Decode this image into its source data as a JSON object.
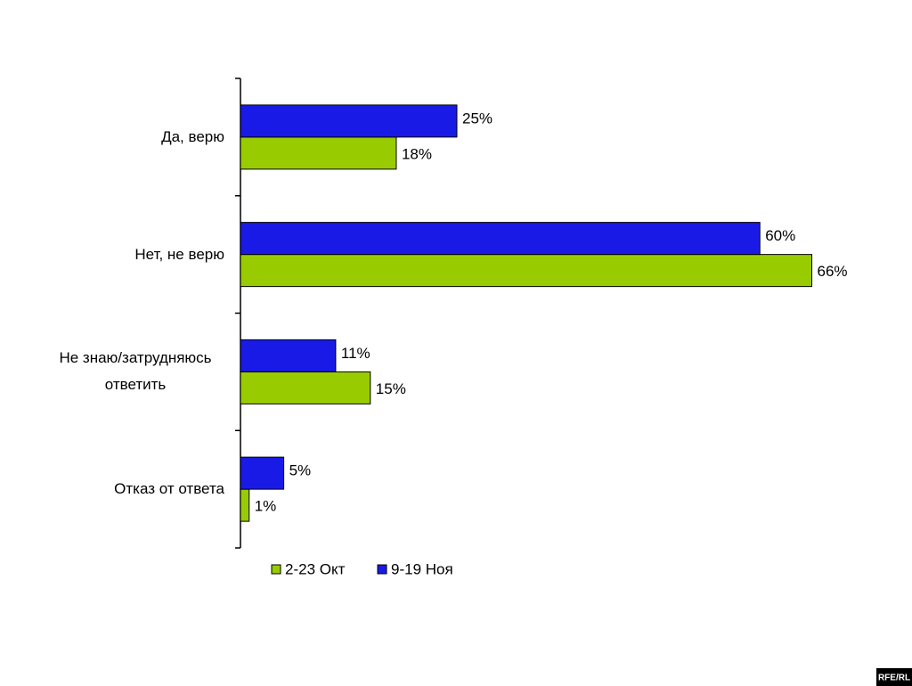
{
  "chart_data": {
    "type": "bar",
    "orientation": "horizontal",
    "categories": [
      "Да, верю",
      "Нет, не верю",
      "Не знаю/затрудняюсь ответить",
      "Отказ от ответа"
    ],
    "series": [
      {
        "name": "2-23 Окт",
        "color": "#99cc00",
        "values": [
          18,
          66,
          15,
          1
        ],
        "value_labels": [
          "18%",
          "66%",
          "15%",
          "1%"
        ]
      },
      {
        "name": "9-19 Ноя",
        "color": "#1a1ae6",
        "values": [
          25,
          60,
          11,
          5
        ],
        "value_labels": [
          "25%",
          "60%",
          "11%",
          "5%"
        ]
      }
    ],
    "legend": "bottom"
  },
  "watermark": "RFE/RL"
}
